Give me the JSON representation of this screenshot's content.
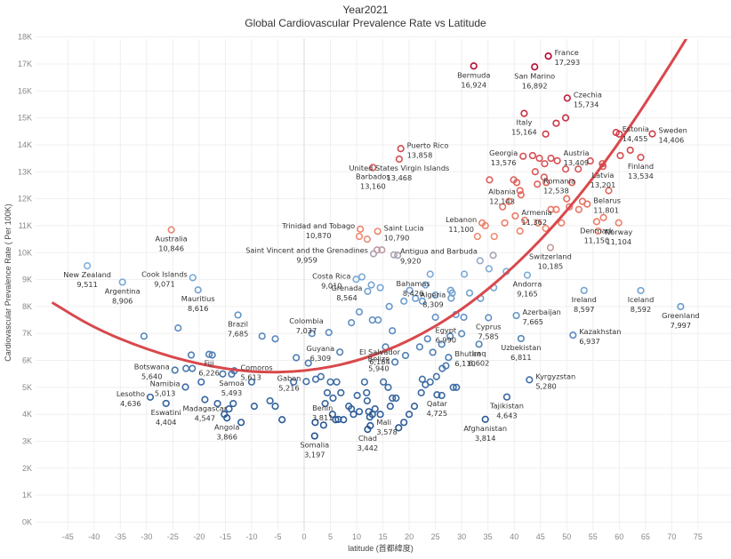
{
  "chart_data": {
    "type": "scatter",
    "title": "Year2021",
    "subtitle": "Global Cardiovascular Prevalence Rate vs Latitude",
    "xlabel": "latitude (首都緯度)",
    "ylabel": "Cardiovascular Prevalence Rate ( Per 100K)",
    "xlim": [
      -48,
      78
    ],
    "ylim": [
      -200,
      18300
    ],
    "xticks": [
      -45,
      -40,
      -35,
      -30,
      -25,
      -20,
      -15,
      -10,
      -5,
      0,
      5,
      10,
      15,
      20,
      25,
      30,
      35,
      40,
      45,
      50,
      55,
      60,
      65,
      70,
      75
    ],
    "xtick_labels": [
      "-45",
      "-40",
      "-35",
      "-30",
      "-25",
      "-20",
      "-15",
      "-10",
      "-5",
      "0",
      "5",
      "10",
      "15",
      "20",
      "25",
      "30",
      "35",
      "40",
      "45",
      "50",
      "55",
      "60",
      "65",
      "70",
      "75"
    ],
    "yticks": [
      0,
      1000,
      2000,
      3000,
      4000,
      5000,
      6000,
      7000,
      8000,
      9000,
      10000,
      11000,
      12000,
      13000,
      14000,
      15000,
      16000,
      17000,
      18000
    ],
    "ytick_labels": [
      "0K",
      "1K",
      "2K",
      "3K",
      "4K",
      "5K",
      "6K",
      "7K",
      "8K",
      "9K",
      "10K",
      "11K",
      "12K",
      "13K",
      "14K",
      "15K",
      "16K",
      "17K",
      "18K"
    ],
    "grid": true,
    "zero_line_x": 0,
    "color_scale": {
      "low": "#1f4e8c",
      "mid_low": "#7fb0dd",
      "mid_high": "#f08a70",
      "high": "#b5002c"
    },
    "trend_line": {
      "type": "polynomial-2",
      "color": "#d9484c",
      "points": [
        [
          -48,
          8150
        ],
        [
          -40,
          7200
        ],
        [
          -30,
          6400
        ],
        [
          -20,
          5850
        ],
        [
          -10,
          5550
        ],
        [
          0,
          5580
        ],
        [
          10,
          5950
        ],
        [
          20,
          6700
        ],
        [
          30,
          7850
        ],
        [
          40,
          9450
        ],
        [
          50,
          11500
        ],
        [
          60,
          14050
        ],
        [
          70,
          17050
        ],
        [
          75,
          18650
        ]
      ]
    },
    "labeled_points": [
      {
        "name": "France",
        "x": 46.5,
        "y": 17293,
        "label_side": "right"
      },
      {
        "name": "Bermuda",
        "x": 32.3,
        "y": 16924
      },
      {
        "name": "San Marino",
        "x": 43.9,
        "y": 16892
      },
      {
        "name": "Czechia",
        "x": 50.1,
        "y": 15734,
        "label_side": "right"
      },
      {
        "name": "Italy",
        "x": 41.9,
        "y": 15164
      },
      {
        "name": "Austria",
        "x": 48.2,
        "y": 13409,
        "label_side": "right-up"
      },
      {
        "name": "Estonia",
        "x": 59.4,
        "y": 14455,
        "label_side": "right"
      },
      {
        "name": "Sweden",
        "x": 66.3,
        "y": 14406,
        "label_side": "right"
      },
      {
        "name": "Finland",
        "x": 64.1,
        "y": 13534
      },
      {
        "name": "Latvia",
        "x": 56.9,
        "y": 13201
      },
      {
        "name": "Puerto Rico",
        "x": 18.4,
        "y": 13858,
        "label_side": "right"
      },
      {
        "name": "Georgia",
        "x": 41.7,
        "y": 13576,
        "label_side": "left"
      },
      {
        "name": "United States Virgin Islands",
        "x": 18.1,
        "y": 13468
      },
      {
        "name": "Barbados",
        "x": 13.1,
        "y": 13160
      },
      {
        "name": "Romania",
        "x": 44.4,
        "y": 12538,
        "label_side": "right"
      },
      {
        "name": "Albania",
        "x": 41.3,
        "y": 12143,
        "label_side": "left"
      },
      {
        "name": "Belarus",
        "x": 53.9,
        "y": 11801,
        "label_side": "right"
      },
      {
        "name": "Armenia",
        "x": 40.2,
        "y": 11362,
        "label_side": "right"
      },
      {
        "name": "Denmark",
        "x": 55.7,
        "y": 11150
      },
      {
        "name": "Norway",
        "x": 59.9,
        "y": 11104
      },
      {
        "name": "Lebanon",
        "x": 33.9,
        "y": 11100,
        "label_side": "left"
      },
      {
        "name": "Trinidad and Tobago",
        "x": 10.7,
        "y": 10870,
        "label_side": "left"
      },
      {
        "name": "Australia",
        "x": -25.3,
        "y": 10846
      },
      {
        "name": "Saint Lucia",
        "x": 14.0,
        "y": 10790,
        "label_side": "right"
      },
      {
        "name": "Switzerland",
        "x": 46.9,
        "y": 10185
      },
      {
        "name": "Saint Vincent and the Grenadines",
        "x": 13.2,
        "y": 9959,
        "label_side": "left"
      },
      {
        "name": "Antigua and Barbuda",
        "x": 17.1,
        "y": 9920,
        "label_side": "right"
      },
      {
        "name": "New Zealand",
        "x": -41.3,
        "y": 9511
      },
      {
        "name": "Andorra",
        "x": 42.5,
        "y": 9165
      },
      {
        "name": "Cook Islands",
        "x": -21.2,
        "y": 9071,
        "label_side": "left"
      },
      {
        "name": "Costa Rica",
        "x": 9.9,
        "y": 9010,
        "label_side": "left"
      },
      {
        "name": "Argentina",
        "x": -34.6,
        "y": 8906
      },
      {
        "name": "Mauritius",
        "x": -20.2,
        "y": 8616
      },
      {
        "name": "Ireland",
        "x": 53.3,
        "y": 8597
      },
      {
        "name": "Iceland",
        "x": 64.1,
        "y": 8592
      },
      {
        "name": "Grenada",
        "x": 12.1,
        "y": 8564,
        "label_side": "left"
      },
      {
        "name": "Bahamas",
        "x": 25.0,
        "y": 8426,
        "label_side": "left-up"
      },
      {
        "name": "Algeria",
        "x": 28.0,
        "y": 8309,
        "label_side": "left"
      },
      {
        "name": "Greenland",
        "x": 71.7,
        "y": 7997
      },
      {
        "name": "Brazil",
        "x": -12.6,
        "y": 7685
      },
      {
        "name": "Azerbaijan",
        "x": 40.4,
        "y": 7665,
        "label_side": "right"
      },
      {
        "name": "Cyprus",
        "x": 35.1,
        "y": 7585
      },
      {
        "name": "Colombia",
        "x": 4.7,
        "y": 7037,
        "label_side": "left-up"
      },
      {
        "name": "Egypt",
        "x": 30.0,
        "y": 6990,
        "label_side": "left"
      },
      {
        "name": "Kazakhstan",
        "x": 51.2,
        "y": 6937,
        "label_side": "right"
      },
      {
        "name": "Uzbekistan",
        "x": 41.3,
        "y": 6811
      },
      {
        "name": "Iraq",
        "x": 33.3,
        "y": 6602
      },
      {
        "name": "El Salvador",
        "x": 19.3,
        "y": 6184,
        "label_side": "left"
      },
      {
        "name": "Guyana",
        "x": 6.8,
        "y": 6309,
        "label_side": "left"
      },
      {
        "name": "Fiji",
        "x": -18.1,
        "y": 6226
      },
      {
        "name": "Bhutan",
        "x": 27.5,
        "y": 6110,
        "label_side": "right"
      },
      {
        "name": "Belize",
        "x": 17.3,
        "y": 5940,
        "label_side": "left"
      },
      {
        "name": "Botswana",
        "x": -24.6,
        "y": 5640,
        "label_side": "left"
      },
      {
        "name": "Comoros",
        "x": -13.3,
        "y": 5613,
        "label_side": "right"
      },
      {
        "name": "Samoa",
        "x": -13.8,
        "y": 5493
      },
      {
        "name": "Kyrgyzstan",
        "x": 42.9,
        "y": 5280,
        "label_side": "right"
      },
      {
        "name": "Gabon",
        "x": 0.4,
        "y": 5216,
        "label_side": "left"
      },
      {
        "name": "Namibia",
        "x": -22.6,
        "y": 5013,
        "label_side": "left"
      },
      {
        "name": "Qatar",
        "x": 25.3,
        "y": 4725
      },
      {
        "name": "Lesotho",
        "x": -29.3,
        "y": 4636,
        "label_side": "left"
      },
      {
        "name": "Tajikistan",
        "x": 38.6,
        "y": 4643
      },
      {
        "name": "Madagascar",
        "x": -18.9,
        "y": 4547
      },
      {
        "name": "Eswatini",
        "x": -26.3,
        "y": 4404
      },
      {
        "name": "Angola",
        "x": -14.7,
        "y": 3866
      },
      {
        "name": "Afghanistan",
        "x": 34.5,
        "y": 3814
      },
      {
        "name": "Benin",
        "x": 6.5,
        "y": 3811,
        "label_side": "left-up"
      },
      {
        "name": "Mali",
        "x": 12.6,
        "y": 3578,
        "label_side": "right"
      },
      {
        "name": "Chad",
        "x": 12.1,
        "y": 3442
      },
      {
        "name": "Somalia",
        "x": 2.0,
        "y": 3197
      }
    ],
    "unlabeled_points": [
      [
        -30.5,
        6900
      ],
      [
        -24,
        7200
      ],
      [
        -21.5,
        6200
      ],
      [
        -22.5,
        5700
      ],
      [
        -21.3,
        5700
      ],
      [
        -17.5,
        6200
      ],
      [
        -15.5,
        5500
      ],
      [
        -19.6,
        5200
      ],
      [
        -16.5,
        4400
      ],
      [
        -13.5,
        4400
      ],
      [
        -14.3,
        4200
      ],
      [
        -15.2,
        4000
      ],
      [
        -12.0,
        3700
      ],
      [
        -9.5,
        4300
      ],
      [
        -10.0,
        5200
      ],
      [
        -6.5,
        4500
      ],
      [
        -5.5,
        4300
      ],
      [
        -4.2,
        3800
      ],
      [
        -2,
        5200
      ],
      [
        -1.5,
        6100
      ],
      [
        0.8,
        5900
      ],
      [
        1.5,
        7000
      ],
      [
        -5.5,
        6800
      ],
      [
        -8,
        6900
      ],
      [
        2.2,
        5300
      ],
      [
        3.2,
        5400
      ],
      [
        4.4,
        4800
      ],
      [
        5.5,
        4600
      ],
      [
        5.4,
        4000
      ],
      [
        6.0,
        3800
      ],
      [
        3.7,
        3600
      ],
      [
        2.1,
        3700
      ],
      [
        4.0,
        4400
      ],
      [
        5.0,
        5200
      ],
      [
        6.2,
        5200
      ],
      [
        7.0,
        4800
      ],
      [
        7.5,
        3800
      ],
      [
        8.5,
        4300
      ],
      [
        9.0,
        4200
      ],
      [
        9.4,
        4000
      ],
      [
        10.1,
        4700
      ],
      [
        10.5,
        4100
      ],
      [
        11.5,
        5200
      ],
      [
        11.9,
        4800
      ],
      [
        12.0,
        4500
      ],
      [
        12.3,
        4100
      ],
      [
        12.5,
        3900
      ],
      [
        13.0,
        4000
      ],
      [
        13.5,
        4200
      ],
      [
        14.5,
        4000
      ],
      [
        15.1,
        5200
      ],
      [
        16.0,
        5000
      ],
      [
        16.4,
        4300
      ],
      [
        16.8,
        4600
      ],
      [
        17.5,
        4600
      ],
      [
        18.0,
        3500
      ],
      [
        19.0,
        3700
      ],
      [
        20.0,
        4000
      ],
      [
        21.0,
        4300
      ],
      [
        22.3,
        4800
      ],
      [
        22.5,
        5300
      ],
      [
        23.1,
        5100
      ],
      [
        24.0,
        5200
      ],
      [
        25.2,
        5400
      ],
      [
        26.3,
        5700
      ],
      [
        27.0,
        5800
      ],
      [
        28.4,
        5000
      ],
      [
        29.0,
        5000
      ],
      [
        26.2,
        4700
      ],
      [
        22.0,
        6500
      ],
      [
        23.5,
        6800
      ],
      [
        25.0,
        7600
      ],
      [
        24.5,
        6300
      ],
      [
        26.2,
        6600
      ],
      [
        27.8,
        6900
      ],
      [
        28.9,
        7700
      ],
      [
        30.4,
        7600
      ],
      [
        31.5,
        8500
      ],
      [
        33.6,
        8300
      ],
      [
        35.2,
        9400
      ],
      [
        36.1,
        8700
      ],
      [
        33.5,
        9700
      ],
      [
        38.5,
        9300
      ],
      [
        30.5,
        9200
      ],
      [
        12.0,
        10500
      ],
      [
        10.5,
        10600
      ],
      [
        14.8,
        10100
      ],
      [
        13.9,
        10100
      ],
      [
        17.8,
        9900
      ],
      [
        11.0,
        9100
      ],
      [
        12.8,
        8800
      ],
      [
        14.5,
        8700
      ],
      [
        16.2,
        8000
      ],
      [
        14.1,
        7500
      ],
      [
        9.0,
        7400
      ],
      [
        10.5,
        7800
      ],
      [
        13.0,
        7500
      ],
      [
        15.5,
        6500
      ],
      [
        16.8,
        7100
      ],
      [
        19.0,
        8200
      ],
      [
        20.1,
        8600
      ],
      [
        21.2,
        8300
      ],
      [
        22.5,
        8200
      ],
      [
        23.1,
        8800
      ],
      [
        24.0,
        9200
      ],
      [
        27.9,
        8600
      ],
      [
        28.2,
        8500
      ],
      [
        36,
        9900
      ],
      [
        33.0,
        10600
      ],
      [
        34.5,
        11000
      ],
      [
        35.3,
        12700
      ],
      [
        36.2,
        10600
      ],
      [
        37.8,
        11700
      ],
      [
        38.2,
        11100
      ],
      [
        39.0,
        11900
      ],
      [
        41.1,
        10800
      ],
      [
        42.0,
        11200
      ],
      [
        44.5,
        11100
      ],
      [
        46.0,
        10900
      ],
      [
        47.0,
        11600
      ],
      [
        48.0,
        11600
      ],
      [
        49.0,
        11100
      ],
      [
        50.0,
        12000
      ],
      [
        50.5,
        11700
      ],
      [
        51.0,
        12600
      ],
      [
        52.3,
        11600
      ],
      [
        53.0,
        11900
      ],
      [
        56.0,
        10800
      ],
      [
        57.0,
        11300
      ],
      [
        58.0,
        12300
      ],
      [
        39.9,
        12700
      ],
      [
        40.5,
        12600
      ],
      [
        41.1,
        12300
      ],
      [
        45.7,
        12800
      ],
      [
        46.1,
        12600
      ],
      [
        44.0,
        13000
      ],
      [
        43.5,
        13600
      ],
      [
        44.8,
        13500
      ],
      [
        45.8,
        13300
      ],
      [
        47.0,
        13500
      ],
      [
        49.8,
        13100
      ],
      [
        52.2,
        13100
      ],
      [
        54.5,
        13400
      ],
      [
        56.8,
        13300
      ],
      [
        60.2,
        13600
      ],
      [
        60.0,
        14400
      ],
      [
        62.1,
        13800
      ],
      [
        46.0,
        14400
      ],
      [
        48.0,
        14800
      ],
      [
        49.8,
        15000
      ]
    ]
  }
}
